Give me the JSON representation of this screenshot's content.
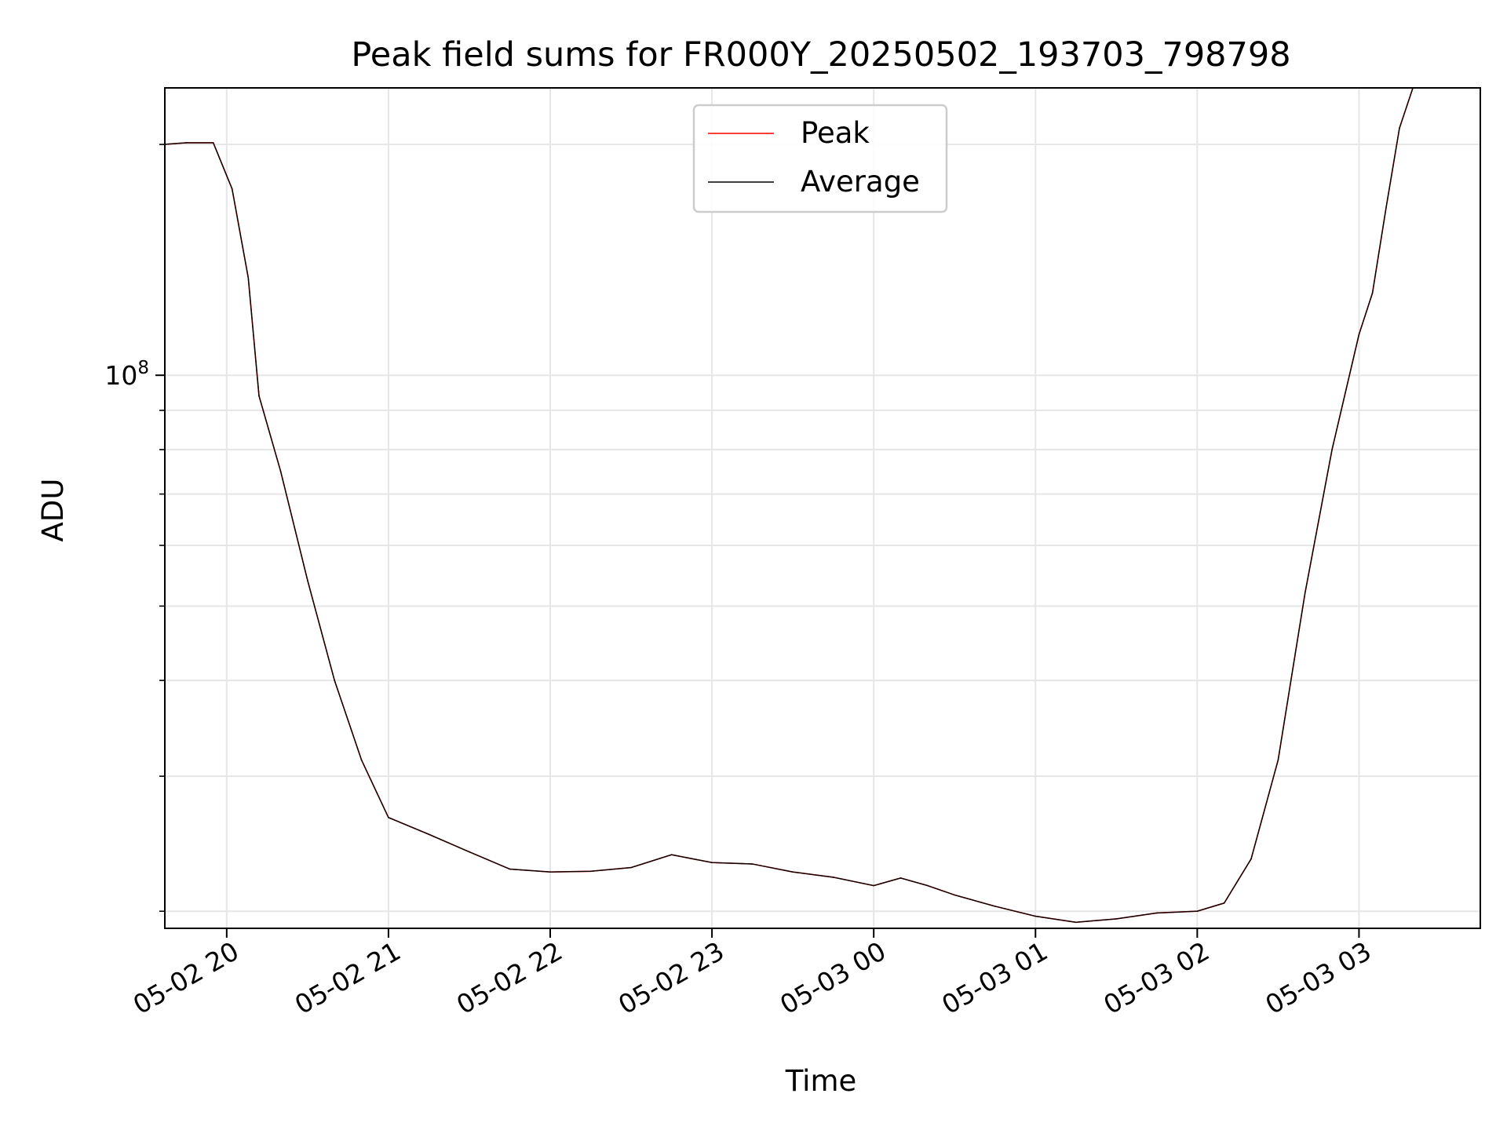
{
  "chart_data": {
    "type": "line",
    "title": "Peak field sums for FR000Y_20250502_193703_798798",
    "xlabel": "Time",
    "ylabel": "ADU",
    "yscale": "log",
    "ylim": [
      19000000,
      237000000
    ],
    "xlim": [
      "2025-05-02 19:37:03",
      "2025-05-03 03:45:00"
    ],
    "x_ticks": [
      {
        "t": "2025-05-02 20:00",
        "label": "05-02 20"
      },
      {
        "t": "2025-05-02 21:00",
        "label": "05-02 21"
      },
      {
        "t": "2025-05-02 22:00",
        "label": "05-02 22"
      },
      {
        "t": "2025-05-02 23:00",
        "label": "05-02 23"
      },
      {
        "t": "2025-05-03 00:00",
        "label": "05-03 00"
      },
      {
        "t": "2025-05-03 01:00",
        "label": "05-03 01"
      },
      {
        "t": "2025-05-03 02:00",
        "label": "05-03 02"
      },
      {
        "t": "2025-05-03 03:00",
        "label": "05-03 03"
      }
    ],
    "y_major_ticks": [
      {
        "value": 100000000,
        "label_base": "10",
        "label_exp": "8"
      }
    ],
    "y_minor_ticks": [
      20000000,
      30000000,
      40000000,
      50000000,
      60000000,
      70000000,
      80000000,
      90000000,
      200000000
    ],
    "grid": true,
    "legend_position": "top-center",
    "series": [
      {
        "name": "Peak",
        "color": "#ff0000",
        "x": [
          "2025-05-02 19:37",
          "2025-05-02 19:45",
          "2025-05-02 19:55",
          "2025-05-02 20:02",
          "2025-05-02 20:08",
          "2025-05-02 20:12",
          "2025-05-02 20:20",
          "2025-05-02 20:30",
          "2025-05-02 20:40",
          "2025-05-02 20:50",
          "2025-05-02 21:00",
          "2025-05-02 21:15",
          "2025-05-02 21:30",
          "2025-05-02 21:45",
          "2025-05-02 22:00",
          "2025-05-02 22:15",
          "2025-05-02 22:30",
          "2025-05-02 22:45",
          "2025-05-02 23:00",
          "2025-05-02 23:15",
          "2025-05-02 23:30",
          "2025-05-02 23:45",
          "2025-05-03 00:00",
          "2025-05-03 00:10",
          "2025-05-03 00:20",
          "2025-05-03 00:30",
          "2025-05-03 00:45",
          "2025-05-03 01:00",
          "2025-05-03 01:15",
          "2025-05-03 01:30",
          "2025-05-03 01:45",
          "2025-05-03 02:00",
          "2025-05-03 02:10",
          "2025-05-03 02:20",
          "2025-05-03 02:30",
          "2025-05-03 02:40",
          "2025-05-03 02:50",
          "2025-05-03 03:00",
          "2025-05-03 03:05",
          "2025-05-03 03:10",
          "2025-05-03 03:15",
          "2025-05-03 03:20"
        ],
        "y": [
          200000000,
          201000000,
          201000000,
          175000000,
          134000000,
          94000000,
          75000000,
          54000000,
          40000000,
          31500000,
          26500000,
          25200000,
          23900000,
          22700000,
          22500000,
          22550000,
          22800000,
          23700000,
          23150000,
          23050000,
          22500000,
          22150000,
          21600000,
          22100000,
          21600000,
          21000000,
          20300000,
          19700000,
          19350000,
          19550000,
          19900000,
          20000000,
          20500000,
          23400000,
          31500000,
          52000000,
          80000000,
          113000000,
          128000000,
          165000000,
          210000000,
          237000000
        ]
      },
      {
        "name": "Average",
        "color": "#000000",
        "x": [
          "2025-05-02 19:37",
          "2025-05-02 19:45",
          "2025-05-02 19:55",
          "2025-05-02 20:02",
          "2025-05-02 20:08",
          "2025-05-02 20:12",
          "2025-05-02 20:20",
          "2025-05-02 20:30",
          "2025-05-02 20:40",
          "2025-05-02 20:50",
          "2025-05-02 21:00",
          "2025-05-02 21:15",
          "2025-05-02 21:30",
          "2025-05-02 21:45",
          "2025-05-02 22:00",
          "2025-05-02 22:15",
          "2025-05-02 22:30",
          "2025-05-02 22:45",
          "2025-05-02 23:00",
          "2025-05-02 23:15",
          "2025-05-02 23:30",
          "2025-05-02 23:45",
          "2025-05-03 00:00",
          "2025-05-03 00:10",
          "2025-05-03 00:20",
          "2025-05-03 00:30",
          "2025-05-03 00:45",
          "2025-05-03 01:00",
          "2025-05-03 01:15",
          "2025-05-03 01:30",
          "2025-05-03 01:45",
          "2025-05-03 02:00",
          "2025-05-03 02:10",
          "2025-05-03 02:20",
          "2025-05-03 02:30",
          "2025-05-03 02:40",
          "2025-05-03 02:50",
          "2025-05-03 03:00",
          "2025-05-03 03:05",
          "2025-05-03 03:10",
          "2025-05-03 03:15",
          "2025-05-03 03:20"
        ],
        "y": [
          200000000,
          201000000,
          201000000,
          175000000,
          134000000,
          94000000,
          75000000,
          54000000,
          40000000,
          31500000,
          26500000,
          25200000,
          23900000,
          22700000,
          22500000,
          22550000,
          22800000,
          23700000,
          23150000,
          23050000,
          22500000,
          22150000,
          21600000,
          22100000,
          21600000,
          21000000,
          20300000,
          19700000,
          19350000,
          19550000,
          19900000,
          20000000,
          20500000,
          23400000,
          31500000,
          52000000,
          80000000,
          113000000,
          128000000,
          165000000,
          210000000,
          237000000
        ]
      }
    ]
  }
}
